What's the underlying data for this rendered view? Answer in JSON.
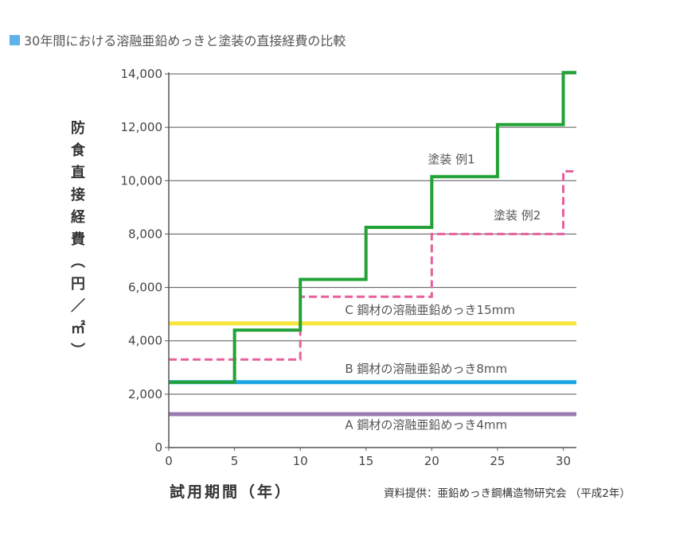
{
  "title": "30年間における溶融亜鉛めっきと塗装の直接経費の比較",
  "source_note": "資料提供：亜鉛めっき鋼構造物研究会 （平成2年）",
  "colors": {
    "title_marker": "#5fb2ea",
    "paint_example_1": "#22a236",
    "paint_example_2": "#e8609e",
    "galv_15mm": "#f7e53b",
    "galv_8mm": "#1ba6e6",
    "galv_4mm": "#9a79b3"
  },
  "chart_data": {
    "type": "line",
    "title": "30年間における溶融亜鉛めっきと塗装の直接経費の比較",
    "xlabel": "試用期間（年）",
    "ylabel": "防食直接経費（円／㎡）",
    "xlim": [
      0,
      31
    ],
    "ylim": [
      0,
      14000
    ],
    "x_ticks": [
      0,
      5,
      10,
      15,
      20,
      25,
      30
    ],
    "y_ticks": [
      0,
      2000,
      4000,
      6000,
      8000,
      10000,
      12000,
      14000
    ],
    "y_tick_labels": [
      "0",
      "2,000",
      "4,000",
      "6,000",
      "8,000",
      "10,000",
      "12,000",
      "14,000"
    ],
    "grid": "horizontal",
    "series": [
      {
        "name": "塗装 例1",
        "style": "step-solid",
        "points": [
          [
            0,
            2450
          ],
          [
            5,
            2450
          ],
          [
            5,
            4400
          ],
          [
            10,
            4400
          ],
          [
            10,
            6300
          ],
          [
            15,
            6300
          ],
          [
            15,
            8250
          ],
          [
            20,
            8250
          ],
          [
            20,
            10150
          ],
          [
            25,
            10150
          ],
          [
            25,
            12100
          ],
          [
            30,
            12100
          ],
          [
            30,
            14050
          ],
          [
            31,
            14050
          ]
        ]
      },
      {
        "name": "塗装 例2",
        "style": "step-dashed",
        "points": [
          [
            0,
            3300
          ],
          [
            10,
            3300
          ],
          [
            10,
            5650
          ],
          [
            20,
            5650
          ],
          [
            20,
            8000
          ],
          [
            30,
            8000
          ],
          [
            30,
            10350
          ],
          [
            31,
            10350
          ]
        ]
      },
      {
        "name": "C 鋼材の溶融亜鉛めっき15mm",
        "style": "constant",
        "points": [
          [
            0,
            4650
          ],
          [
            31,
            4650
          ]
        ]
      },
      {
        "name": "B 鋼材の溶融亜鉛めっき8mm",
        "style": "constant",
        "points": [
          [
            0,
            2450
          ],
          [
            31,
            2450
          ]
        ]
      },
      {
        "name": "A 鋼材の溶融亜鉛めっき4mm",
        "style": "constant",
        "points": [
          [
            0,
            1250
          ],
          [
            31,
            1250
          ]
        ]
      }
    ]
  }
}
